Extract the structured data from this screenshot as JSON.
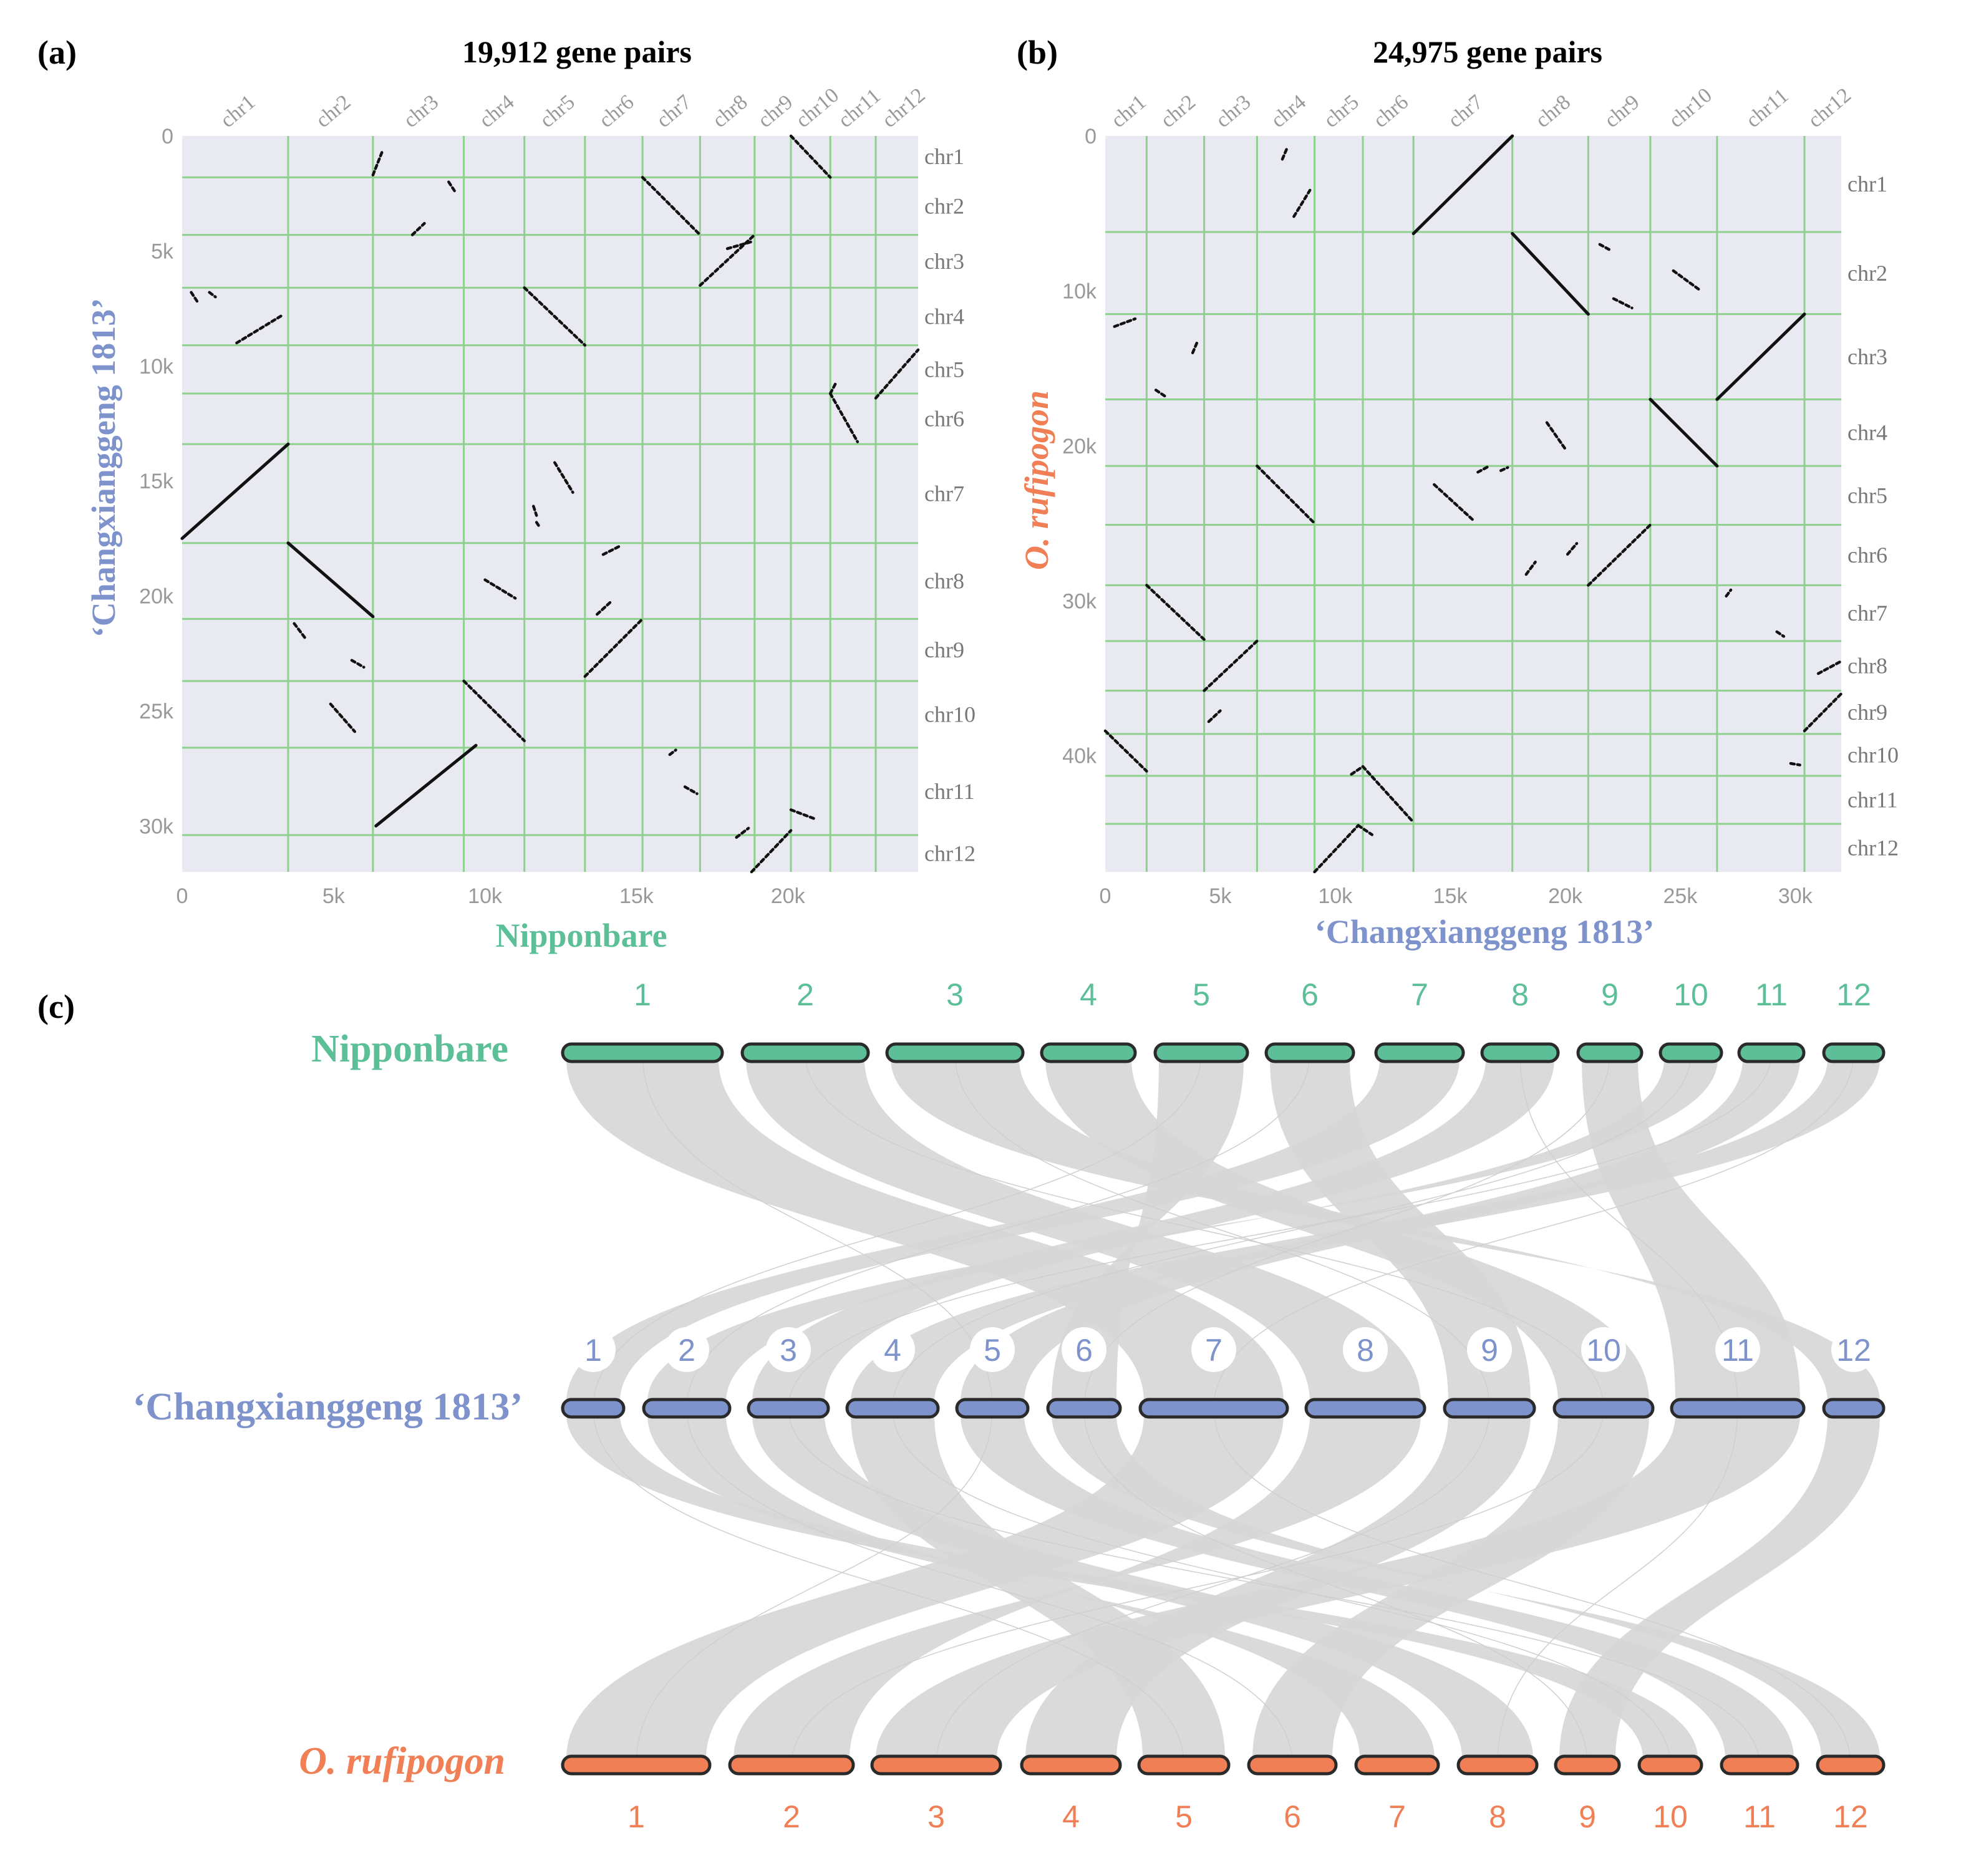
{
  "colors": {
    "green": "#5cbf98",
    "blue": "#7e92cc",
    "orange": "#f07f55",
    "grid": "#8fd08f",
    "plot_bg": "#e9eaf1",
    "tick": "#999999",
    "ribbon": "#d6d6d6",
    "dot": "#111111"
  },
  "panel_a": {
    "label": "(a)",
    "title": "19,912 gene pairs",
    "xlabel": "Nipponbare",
    "ylabel": "‘Changxianggeng 1813’"
  },
  "panel_b": {
    "label": "(b)",
    "title": "24,975 gene pairs",
    "xlabel": "‘Changxianggeng 1813’",
    "ylabel": "O. rufipogon"
  },
  "panel_c": {
    "label": "(c)",
    "genome_top": "Nipponbare",
    "genome_mid": "‘Changxianggeng 1813’",
    "genome_bot": "O. rufipogon",
    "chrom_numbers": [
      "1",
      "2",
      "3",
      "4",
      "5",
      "6",
      "7",
      "8",
      "9",
      "10",
      "11",
      "12"
    ]
  },
  "chart_data": [
    {
      "type": "scatter",
      "subtype": "dot-plot",
      "panel": "a",
      "title": "19,912 gene pairs",
      "xlabel": "Nipponbare",
      "ylabel": "‘Changxianggeng 1813’",
      "xlim": [
        0,
        24300
      ],
      "ylim": [
        0,
        32000
      ],
      "y_inverted": true,
      "xticks": [
        0,
        5000,
        10000,
        15000,
        20000
      ],
      "xtick_labels": [
        "0",
        "5k",
        "10k",
        "15k",
        "20k"
      ],
      "yticks": [
        0,
        5000,
        10000,
        15000,
        20000,
        25000,
        30000
      ],
      "ytick_labels": [
        "0",
        "5k",
        "10k",
        "15k",
        "20k",
        "25k",
        "30k"
      ],
      "x_chroms": [
        "chr1",
        "chr2",
        "chr3",
        "chr4",
        "chr5",
        "chr6",
        "chr7",
        "chr8",
        "chr9",
        "chr10",
        "chr11",
        "chr12"
      ],
      "x_bounds": [
        0,
        3500,
        6300,
        9300,
        11300,
        13300,
        15200,
        17100,
        18900,
        20100,
        21400,
        22900,
        24300
      ],
      "y_chroms": [
        "chr1",
        "chr2",
        "chr3",
        "chr4",
        "chr5",
        "chr6",
        "chr7",
        "chr8",
        "chr9",
        "chr10",
        "chr11",
        "chr12"
      ],
      "y_bounds": [
        0,
        1800,
        4300,
        6600,
        9100,
        11200,
        13400,
        17700,
        21000,
        23700,
        26600,
        30400,
        32000
      ],
      "blocks": [
        [
          [
            6400,
            30000
          ],
          [
            9700,
            26500
          ]
        ],
        [
          [
            0,
            17500
          ],
          [
            3500,
            13400
          ]
        ],
        [
          [
            3500,
            17700
          ],
          [
            6300,
            20900
          ]
        ],
        [
          [
            11300,
            6600
          ],
          [
            13300,
            9100
          ]
        ],
        [
          [
            15200,
            1800
          ],
          [
            17100,
            4300
          ]
        ],
        [
          [
            17100,
            6500
          ],
          [
            18900,
            4300
          ]
        ],
        [
          [
            20100,
            0
          ],
          [
            21400,
            1800
          ]
        ],
        [
          [
            9300,
            23700
          ],
          [
            11300,
            26300
          ]
        ],
        [
          [
            13300,
            23500
          ],
          [
            15200,
            21000
          ]
        ],
        [
          [
            21400,
            11200
          ],
          [
            22300,
            13300
          ]
        ],
        [
          [
            21400,
            11200
          ],
          [
            21600,
            10700
          ]
        ],
        [
          [
            22900,
            11400
          ],
          [
            24300,
            9300
          ]
        ],
        [
          [
            18800,
            32000
          ],
          [
            20100,
            30200
          ]
        ],
        [
          [
            1800,
            9000
          ],
          [
            3300,
            7800
          ]
        ],
        [
          [
            7600,
            4300
          ],
          [
            8000,
            3800
          ]
        ],
        [
          [
            6300,
            1700
          ],
          [
            6600,
            700
          ]
        ],
        [
          [
            12300,
            14200
          ],
          [
            12900,
            15500
          ]
        ],
        [
          [
            10000,
            19300
          ],
          [
            11000,
            20100
          ]
        ],
        [
          [
            13900,
            18200
          ],
          [
            14500,
            17800
          ]
        ],
        [
          [
            13700,
            20800
          ],
          [
            14200,
            20200
          ]
        ],
        [
          [
            3700,
            21200
          ],
          [
            4100,
            21900
          ]
        ],
        [
          [
            4900,
            24700
          ],
          [
            5700,
            25900
          ]
        ],
        [
          [
            5600,
            22800
          ],
          [
            6000,
            23100
          ]
        ],
        [
          [
            8800,
            2000
          ],
          [
            9000,
            2400
          ]
        ],
        [
          [
            18000,
            4900
          ],
          [
            18800,
            4600
          ]
        ],
        [
          [
            16100,
            26900
          ],
          [
            16300,
            26700
          ]
        ],
        [
          [
            16600,
            28300
          ],
          [
            17000,
            28600
          ]
        ],
        [
          [
            20100,
            29300
          ],
          [
            20900,
            29700
          ]
        ],
        [
          [
            18300,
            30500
          ],
          [
            18700,
            30100
          ]
        ],
        [
          [
            300,
            6800
          ],
          [
            500,
            7200
          ]
        ],
        [
          [
            900,
            6800
          ],
          [
            1100,
            7000
          ]
        ],
        [
          [
            11600,
            16100
          ],
          [
            11700,
            16500
          ]
        ],
        [
          [
            11700,
            16800
          ],
          [
            11800,
            17000
          ]
        ]
      ]
    },
    {
      "type": "scatter",
      "subtype": "dot-plot",
      "panel": "b",
      "title": "24,975 gene pairs",
      "xlabel": "‘Changxianggeng 1813’",
      "ylabel": "O. rufipogon",
      "xlim": [
        0,
        32000
      ],
      "ylim": [
        0,
        47500
      ],
      "y_inverted": true,
      "xticks": [
        0,
        5000,
        10000,
        15000,
        20000,
        25000,
        30000
      ],
      "xtick_labels": [
        "0",
        "5k",
        "10k",
        "15k",
        "20k",
        "25k",
        "30k"
      ],
      "yticks": [
        0,
        10000,
        20000,
        30000,
        40000
      ],
      "ytick_labels": [
        "0",
        "10k",
        "20k",
        "30k",
        "40k"
      ],
      "x_chroms": [
        "chr1",
        "chr2",
        "chr3",
        "chr4",
        "chr5",
        "chr6",
        "chr7",
        "chr8",
        "chr9",
        "chr10",
        "chr11",
        "chr12"
      ],
      "x_bounds": [
        0,
        1800,
        4300,
        6600,
        9100,
        11200,
        13400,
        17700,
        21000,
        23700,
        26600,
        30400,
        32000
      ],
      "y_chroms": [
        "chr1",
        "chr2",
        "chr3",
        "chr4",
        "chr5",
        "chr6",
        "chr7",
        "chr8",
        "chr9",
        "chr10",
        "chr11",
        "chr12"
      ],
      "y_bounds": [
        0,
        6200,
        11500,
        17000,
        21300,
        25100,
        29000,
        32600,
        35800,
        38600,
        41300,
        44400,
        47500
      ],
      "blocks": [
        [
          [
            13400,
            6300
          ],
          [
            17700,
            0
          ]
        ],
        [
          [
            17700,
            6300
          ],
          [
            21000,
            11500
          ]
        ],
        [
          [
            26600,
            17000
          ],
          [
            30400,
            11500
          ]
        ],
        [
          [
            23700,
            17000
          ],
          [
            26600,
            21300
          ]
        ],
        [
          [
            6600,
            21300
          ],
          [
            9100,
            25000
          ]
        ],
        [
          [
            21000,
            29000
          ],
          [
            23700,
            25100
          ]
        ],
        [
          [
            1800,
            29000
          ],
          [
            4300,
            32500
          ]
        ],
        [
          [
            4300,
            35800
          ],
          [
            6600,
            32600
          ]
        ],
        [
          [
            30400,
            38400
          ],
          [
            32000,
            36000
          ]
        ],
        [
          [
            0,
            38400
          ],
          [
            1800,
            41000
          ]
        ],
        [
          [
            9100,
            47500
          ],
          [
            11000,
            44500
          ]
        ],
        [
          [
            11000,
            44500
          ],
          [
            11600,
            45100
          ]
        ],
        [
          [
            10700,
            41200
          ],
          [
            11200,
            40700
          ]
        ],
        [
          [
            11200,
            40700
          ],
          [
            13400,
            44300
          ]
        ],
        [
          [
            14300,
            22500
          ],
          [
            16000,
            24800
          ]
        ],
        [
          [
            7700,
            1500
          ],
          [
            7900,
            800
          ]
        ],
        [
          [
            8200,
            5200
          ],
          [
            8900,
            3500
          ]
        ],
        [
          [
            19200,
            18500
          ],
          [
            20000,
            20200
          ]
        ],
        [
          [
            21500,
            7000
          ],
          [
            22000,
            7400
          ]
        ],
        [
          [
            22100,
            10500
          ],
          [
            22900,
            11100
          ]
        ],
        [
          [
            24700,
            8700
          ],
          [
            25900,
            10000
          ]
        ],
        [
          [
            18300,
            28300
          ],
          [
            18700,
            27500
          ]
        ],
        [
          [
            20100,
            27000
          ],
          [
            20500,
            26300
          ]
        ],
        [
          [
            400,
            12300
          ],
          [
            1300,
            11800
          ]
        ],
        [
          [
            2200,
            16400
          ],
          [
            2600,
            16800
          ]
        ],
        [
          [
            27000,
            29700
          ],
          [
            27200,
            29300
          ]
        ],
        [
          [
            29200,
            32000
          ],
          [
            29500,
            32300
          ]
        ],
        [
          [
            31000,
            34700
          ],
          [
            32000,
            33900
          ]
        ],
        [
          [
            4500,
            37800
          ],
          [
            5000,
            37100
          ]
        ],
        [
          [
            29800,
            40500
          ],
          [
            30200,
            40600
          ]
        ],
        [
          [
            16200,
            21700
          ],
          [
            16700,
            21300
          ]
        ],
        [
          [
            17200,
            21600
          ],
          [
            17500,
            21400
          ]
        ],
        [
          [
            3800,
            14000
          ],
          [
            4000,
            13300
          ]
        ]
      ]
    },
    {
      "type": "synteny",
      "panel": "c",
      "genomes": [
        "Nipponbare",
        "‘Changxianggeng 1813’",
        "O. rufipogon"
      ],
      "chromosome_labels": [
        "1",
        "2",
        "3",
        "4",
        "5",
        "6",
        "7",
        "8",
        "9",
        "10",
        "11",
        "12"
      ],
      "links_top_to_mid": [
        [
          1,
          7
        ],
        [
          2,
          8
        ],
        [
          3,
          12
        ],
        [
          4,
          10
        ],
        [
          5,
          6
        ],
        [
          6,
          9
        ],
        [
          7,
          1
        ],
        [
          8,
          3
        ],
        [
          9,
          11
        ],
        [
          10,
          2
        ],
        [
          11,
          5
        ],
        [
          12,
          4
        ]
      ],
      "links_mid_to_bot": [
        [
          1,
          10
        ],
        [
          2,
          7
        ],
        [
          3,
          8
        ],
        [
          4,
          5
        ],
        [
          5,
          11
        ],
        [
          6,
          12
        ],
        [
          7,
          1
        ],
        [
          8,
          2
        ],
        [
          9,
          4
        ],
        [
          10,
          6
        ],
        [
          11,
          3
        ],
        [
          12,
          9
        ]
      ]
    }
  ]
}
